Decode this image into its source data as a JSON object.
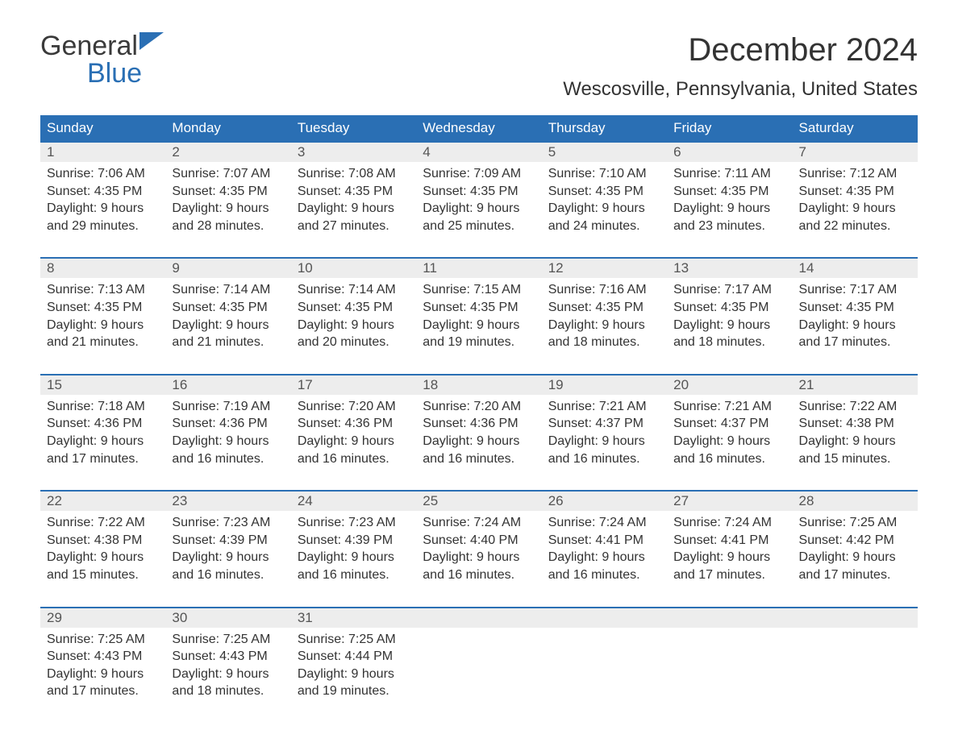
{
  "logo": {
    "word1": "General",
    "word2": "Blue"
  },
  "title": "December 2024",
  "subtitle": "Wescosville, Pennsylvania, United States",
  "colors": {
    "header_bg": "#2a6fb4",
    "header_text": "#ffffff",
    "daynum_bg": "#ededed",
    "daynum_border": "#2a6fb4",
    "text": "#333333",
    "logo_blue": "#2a6fb4",
    "logo_dark": "#3a3a3a",
    "page_bg": "#ffffff"
  },
  "typography": {
    "title_fontsize": 40,
    "subtitle_fontsize": 24,
    "header_fontsize": 17,
    "daynum_fontsize": 17,
    "body_fontsize": 16,
    "font_family": "Arial"
  },
  "columns": [
    "Sunday",
    "Monday",
    "Tuesday",
    "Wednesday",
    "Thursday",
    "Friday",
    "Saturday"
  ],
  "weeks": [
    [
      {
        "n": "1",
        "sr": "Sunrise: 7:06 AM",
        "ss": "Sunset: 4:35 PM",
        "d1": "Daylight: 9 hours",
        "d2": "and 29 minutes."
      },
      {
        "n": "2",
        "sr": "Sunrise: 7:07 AM",
        "ss": "Sunset: 4:35 PM",
        "d1": "Daylight: 9 hours",
        "d2": "and 28 minutes."
      },
      {
        "n": "3",
        "sr": "Sunrise: 7:08 AM",
        "ss": "Sunset: 4:35 PM",
        "d1": "Daylight: 9 hours",
        "d2": "and 27 minutes."
      },
      {
        "n": "4",
        "sr": "Sunrise: 7:09 AM",
        "ss": "Sunset: 4:35 PM",
        "d1": "Daylight: 9 hours",
        "d2": "and 25 minutes."
      },
      {
        "n": "5",
        "sr": "Sunrise: 7:10 AM",
        "ss": "Sunset: 4:35 PM",
        "d1": "Daylight: 9 hours",
        "d2": "and 24 minutes."
      },
      {
        "n": "6",
        "sr": "Sunrise: 7:11 AM",
        "ss": "Sunset: 4:35 PM",
        "d1": "Daylight: 9 hours",
        "d2": "and 23 minutes."
      },
      {
        "n": "7",
        "sr": "Sunrise: 7:12 AM",
        "ss": "Sunset: 4:35 PM",
        "d1": "Daylight: 9 hours",
        "d2": "and 22 minutes."
      }
    ],
    [
      {
        "n": "8",
        "sr": "Sunrise: 7:13 AM",
        "ss": "Sunset: 4:35 PM",
        "d1": "Daylight: 9 hours",
        "d2": "and 21 minutes."
      },
      {
        "n": "9",
        "sr": "Sunrise: 7:14 AM",
        "ss": "Sunset: 4:35 PM",
        "d1": "Daylight: 9 hours",
        "d2": "and 21 minutes."
      },
      {
        "n": "10",
        "sr": "Sunrise: 7:14 AM",
        "ss": "Sunset: 4:35 PM",
        "d1": "Daylight: 9 hours",
        "d2": "and 20 minutes."
      },
      {
        "n": "11",
        "sr": "Sunrise: 7:15 AM",
        "ss": "Sunset: 4:35 PM",
        "d1": "Daylight: 9 hours",
        "d2": "and 19 minutes."
      },
      {
        "n": "12",
        "sr": "Sunrise: 7:16 AM",
        "ss": "Sunset: 4:35 PM",
        "d1": "Daylight: 9 hours",
        "d2": "and 18 minutes."
      },
      {
        "n": "13",
        "sr": "Sunrise: 7:17 AM",
        "ss": "Sunset: 4:35 PM",
        "d1": "Daylight: 9 hours",
        "d2": "and 18 minutes."
      },
      {
        "n": "14",
        "sr": "Sunrise: 7:17 AM",
        "ss": "Sunset: 4:35 PM",
        "d1": "Daylight: 9 hours",
        "d2": "and 17 minutes."
      }
    ],
    [
      {
        "n": "15",
        "sr": "Sunrise: 7:18 AM",
        "ss": "Sunset: 4:36 PM",
        "d1": "Daylight: 9 hours",
        "d2": "and 17 minutes."
      },
      {
        "n": "16",
        "sr": "Sunrise: 7:19 AM",
        "ss": "Sunset: 4:36 PM",
        "d1": "Daylight: 9 hours",
        "d2": "and 16 minutes."
      },
      {
        "n": "17",
        "sr": "Sunrise: 7:20 AM",
        "ss": "Sunset: 4:36 PM",
        "d1": "Daylight: 9 hours",
        "d2": "and 16 minutes."
      },
      {
        "n": "18",
        "sr": "Sunrise: 7:20 AM",
        "ss": "Sunset: 4:36 PM",
        "d1": "Daylight: 9 hours",
        "d2": "and 16 minutes."
      },
      {
        "n": "19",
        "sr": "Sunrise: 7:21 AM",
        "ss": "Sunset: 4:37 PM",
        "d1": "Daylight: 9 hours",
        "d2": "and 16 minutes."
      },
      {
        "n": "20",
        "sr": "Sunrise: 7:21 AM",
        "ss": "Sunset: 4:37 PM",
        "d1": "Daylight: 9 hours",
        "d2": "and 16 minutes."
      },
      {
        "n": "21",
        "sr": "Sunrise: 7:22 AM",
        "ss": "Sunset: 4:38 PM",
        "d1": "Daylight: 9 hours",
        "d2": "and 15 minutes."
      }
    ],
    [
      {
        "n": "22",
        "sr": "Sunrise: 7:22 AM",
        "ss": "Sunset: 4:38 PM",
        "d1": "Daylight: 9 hours",
        "d2": "and 15 minutes."
      },
      {
        "n": "23",
        "sr": "Sunrise: 7:23 AM",
        "ss": "Sunset: 4:39 PM",
        "d1": "Daylight: 9 hours",
        "d2": "and 16 minutes."
      },
      {
        "n": "24",
        "sr": "Sunrise: 7:23 AM",
        "ss": "Sunset: 4:39 PM",
        "d1": "Daylight: 9 hours",
        "d2": "and 16 minutes."
      },
      {
        "n": "25",
        "sr": "Sunrise: 7:24 AM",
        "ss": "Sunset: 4:40 PM",
        "d1": "Daylight: 9 hours",
        "d2": "and 16 minutes."
      },
      {
        "n": "26",
        "sr": "Sunrise: 7:24 AM",
        "ss": "Sunset: 4:41 PM",
        "d1": "Daylight: 9 hours",
        "d2": "and 16 minutes."
      },
      {
        "n": "27",
        "sr": "Sunrise: 7:24 AM",
        "ss": "Sunset: 4:41 PM",
        "d1": "Daylight: 9 hours",
        "d2": "and 17 minutes."
      },
      {
        "n": "28",
        "sr": "Sunrise: 7:25 AM",
        "ss": "Sunset: 4:42 PM",
        "d1": "Daylight: 9 hours",
        "d2": "and 17 minutes."
      }
    ],
    [
      {
        "n": "29",
        "sr": "Sunrise: 7:25 AM",
        "ss": "Sunset: 4:43 PM",
        "d1": "Daylight: 9 hours",
        "d2": "and 17 minutes."
      },
      {
        "n": "30",
        "sr": "Sunrise: 7:25 AM",
        "ss": "Sunset: 4:43 PM",
        "d1": "Daylight: 9 hours",
        "d2": "and 18 minutes."
      },
      {
        "n": "31",
        "sr": "Sunrise: 7:25 AM",
        "ss": "Sunset: 4:44 PM",
        "d1": "Daylight: 9 hours",
        "d2": "and 19 minutes."
      },
      null,
      null,
      null,
      null
    ]
  ]
}
